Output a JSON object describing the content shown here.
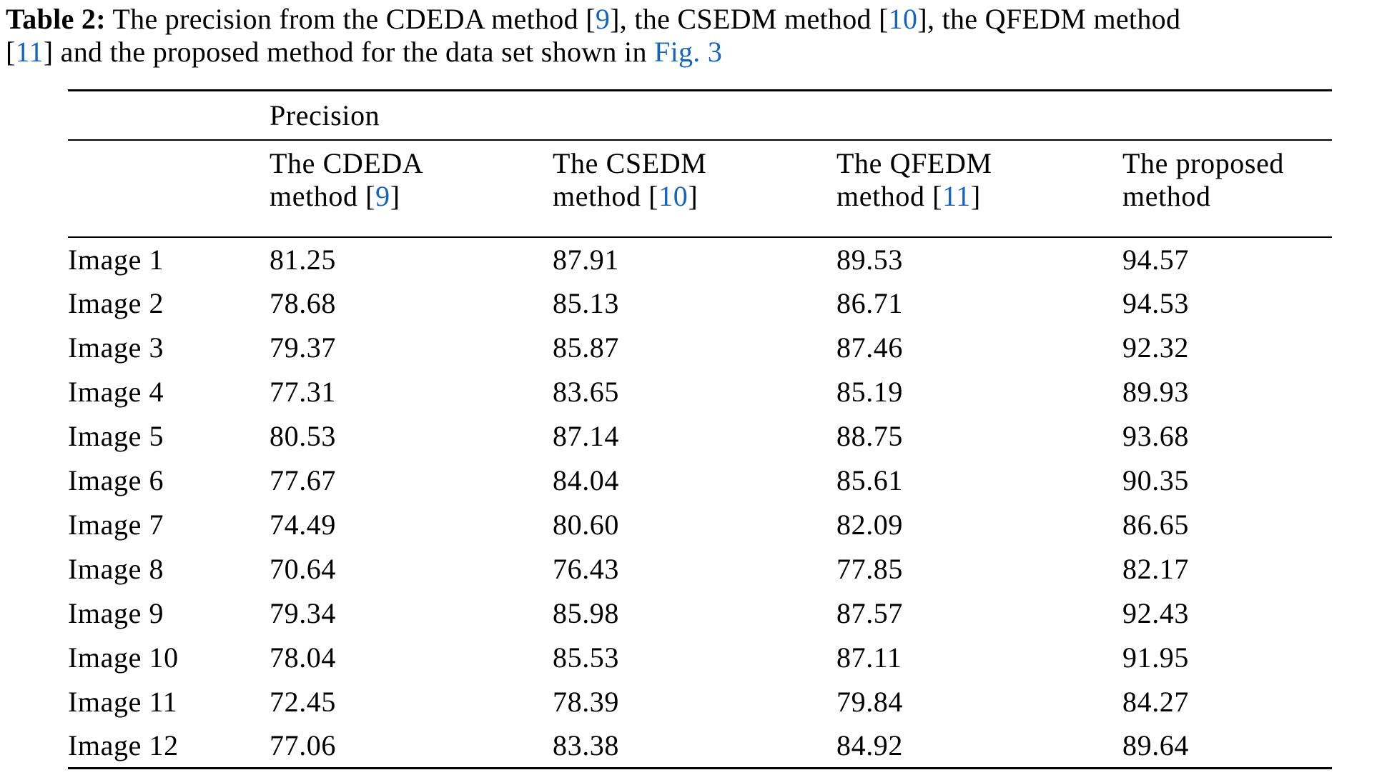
{
  "colors": {
    "text": "#000000",
    "link": "#1565c0",
    "rule": "#000000",
    "background": "#ffffff"
  },
  "caption": {
    "segments": [
      {
        "text": "Table 2:",
        "style": "bold"
      },
      {
        "text": " The precision from the CDEDA method [",
        "style": ""
      },
      {
        "text": "9",
        "style": "link"
      },
      {
        "text": "], the CSEDM method [",
        "style": ""
      },
      {
        "text": "10",
        "style": "link"
      },
      {
        "text": "], the QFEDM method",
        "style": ""
      },
      {
        "break": true
      },
      {
        "text": "[",
        "style": ""
      },
      {
        "text": "11",
        "style": "link"
      },
      {
        "text": "] and the proposed method for the data set shown in ",
        "style": ""
      },
      {
        "text": "Fig. 3",
        "style": "link"
      }
    ]
  },
  "table": {
    "group_header": "Precision",
    "stub_header": "",
    "columns": [
      {
        "line1": "The CDEDA",
        "line2_prefix": "method [",
        "ref": "9",
        "line2_suffix": "]"
      },
      {
        "line1": "The CSEDM",
        "line2_prefix": "method [",
        "ref": "10",
        "line2_suffix": "]"
      },
      {
        "line1": "The QFEDM",
        "line2_prefix": "method [",
        "ref": "11",
        "line2_suffix": "]"
      },
      {
        "line1": "The proposed",
        "line2_prefix": "method",
        "ref": null,
        "line2_suffix": ""
      }
    ],
    "rows": [
      {
        "label": "Image 1",
        "values": [
          "81.25",
          "87.91",
          "89.53",
          "94.57"
        ]
      },
      {
        "label": "Image 2",
        "values": [
          "78.68",
          "85.13",
          "86.71",
          "94.53"
        ]
      },
      {
        "label": "Image 3",
        "values": [
          "79.37",
          "85.87",
          "87.46",
          "92.32"
        ]
      },
      {
        "label": "Image 4",
        "values": [
          "77.31",
          "83.65",
          "85.19",
          "89.93"
        ]
      },
      {
        "label": "Image 5",
        "values": [
          "80.53",
          "87.14",
          "88.75",
          "93.68"
        ]
      },
      {
        "label": "Image 6",
        "values": [
          "77.67",
          "84.04",
          "85.61",
          "90.35"
        ]
      },
      {
        "label": "Image 7",
        "values": [
          "74.49",
          "80.60",
          "82.09",
          "86.65"
        ]
      },
      {
        "label": "Image 8",
        "values": [
          "70.64",
          "76.43",
          "77.85",
          "82.17"
        ]
      },
      {
        "label": "Image 9",
        "values": [
          "79.34",
          "85.98",
          "87.57",
          "92.43"
        ]
      },
      {
        "label": "Image 10",
        "values": [
          "78.04",
          "85.53",
          "87.11",
          "91.95"
        ]
      },
      {
        "label": "Image 11",
        "values": [
          "72.45",
          "78.39",
          "79.84",
          "84.27"
        ]
      },
      {
        "label": "Image 12",
        "values": [
          "77.06",
          "83.38",
          "84.92",
          "89.64"
        ]
      }
    ]
  }
}
